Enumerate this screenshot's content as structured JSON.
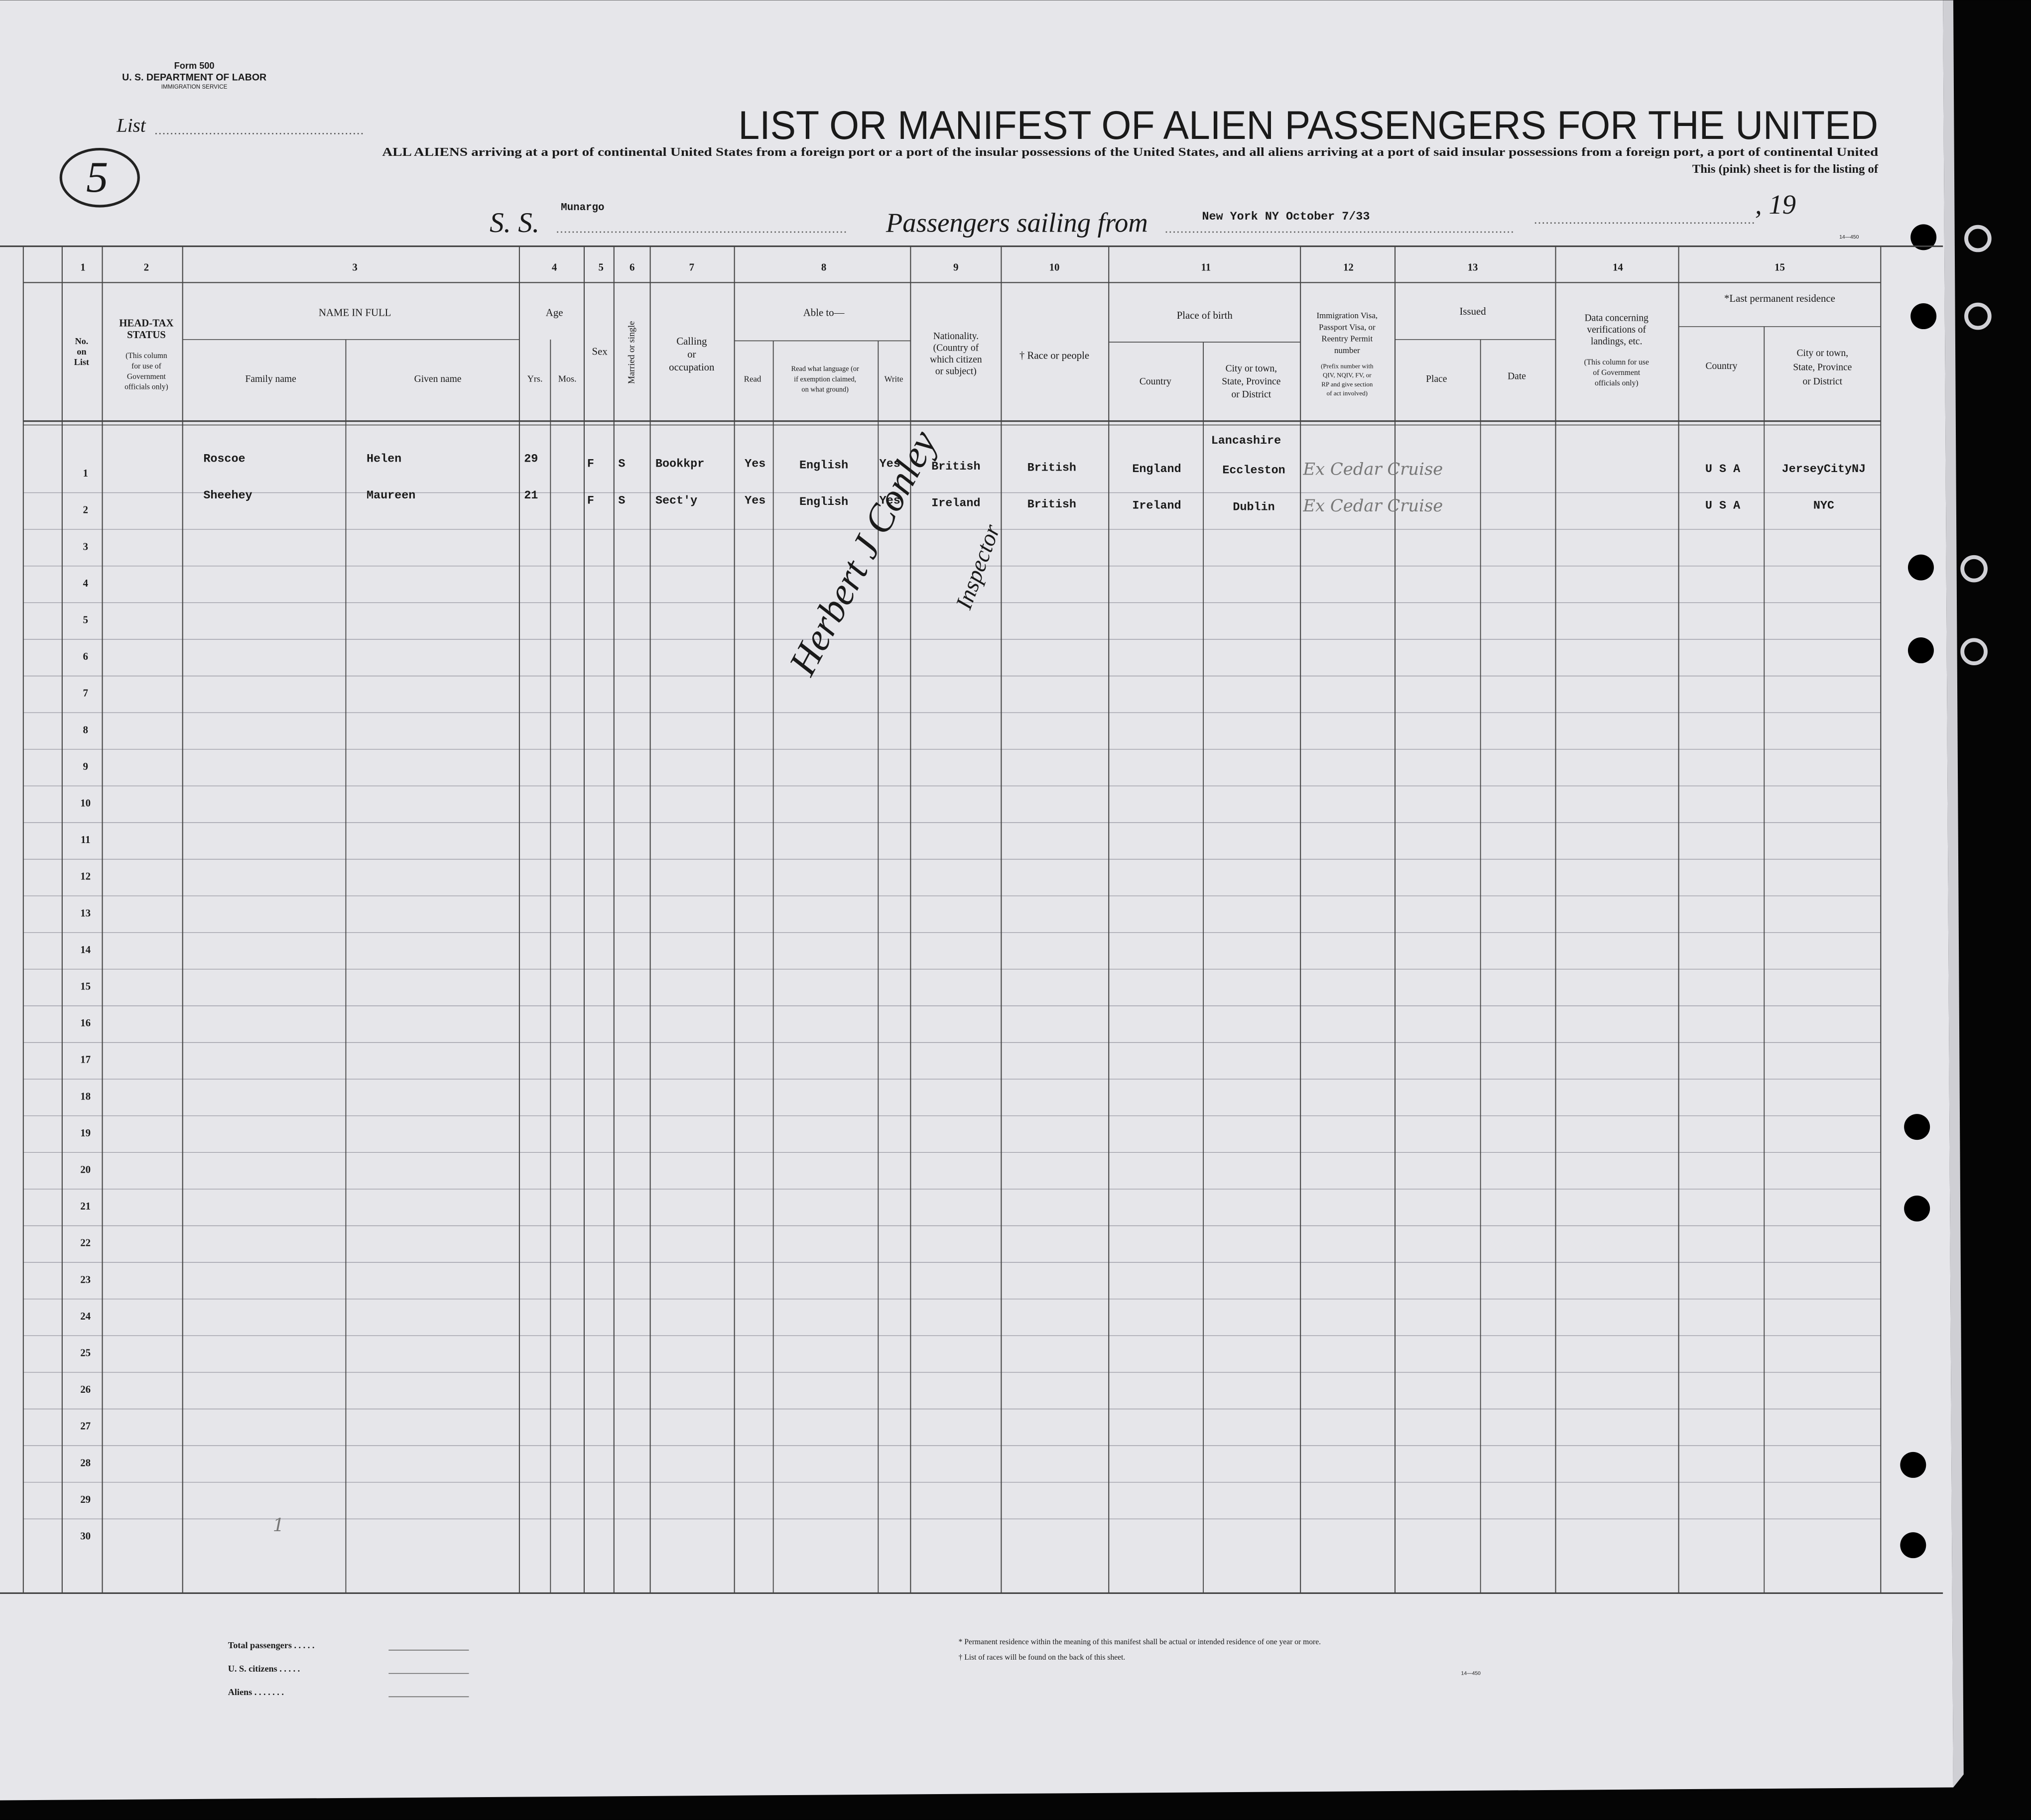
{
  "form": {
    "number": "Form 500",
    "department": "U. S. DEPARTMENT OF LABOR",
    "service": "IMMIGRATION SERVICE"
  },
  "list_label": "List",
  "list_number": "5",
  "title": "LIST OR MANIFEST OF ALIEN PASSENGERS FOR THE UNITED",
  "subtitle_lines": [
    "ALL ALIENS arriving at a port of continental United States from a foreign port or a port of the insular possessions of the United States, and all aliens arriving at a port of said insular possessions from a foreign port, a port of continental United",
    "This (pink) sheet is for the listing of"
  ],
  "ship_label": "S. S.",
  "ship_name": "Munargo",
  "sailing_label": "Passengers sailing from",
  "sailing_from": "New York NY October 7/33",
  "year_label": ", 19",
  "form_codes": [
    "14—450",
    "14—450"
  ],
  "column_numbers": [
    "1",
    "2",
    "3",
    "4",
    "5",
    "6",
    "7",
    "8",
    "9",
    "10",
    "11",
    "12",
    "13",
    "14",
    "15"
  ],
  "headers": [
    {
      "lines": [
        "No.",
        "on",
        "List"
      ]
    },
    {
      "lines": [
        "HEAD-TAX",
        "STATUS"
      ]
    },
    {
      "lines": [
        "(This column",
        "for use of",
        "Government",
        "officials only)"
      ]
    },
    {
      "lines": [
        "NAME IN FULL"
      ]
    },
    {
      "lines": [
        "Family name"
      ]
    },
    {
      "lines": [
        "Given name"
      ]
    },
    {
      "lines": [
        "Age"
      ]
    },
    {
      "lines": [
        "Yrs."
      ]
    },
    {
      "lines": [
        "Mos."
      ]
    },
    {
      "lines": [
        "Sex"
      ]
    },
    {
      "lines": [
        "Married or single"
      ]
    },
    {
      "lines": [
        "Calling",
        "or",
        "occupation"
      ]
    },
    {
      "lines": [
        "Able to—"
      ]
    },
    {
      "lines": [
        "Read"
      ]
    },
    {
      "lines": [
        "Read what language (or",
        "if exemption claimed,",
        "on what ground)"
      ]
    },
    {
      "lines": [
        "Write"
      ]
    },
    {
      "lines": [
        "Nationality.",
        "(Country of",
        "which citizen",
        "or subject)"
      ]
    },
    {
      "lines": [
        "† Race or people"
      ]
    },
    {
      "lines": [
        "Place of birth"
      ]
    },
    {
      "lines": [
        "Country"
      ]
    },
    {
      "lines": [
        "City or town,",
        "State, Province",
        "or District"
      ]
    },
    {
      "lines": [
        "Immigration Visa,",
        "Passport Visa, or",
        "Reentry Permit",
        "number"
      ]
    },
    {
      "lines": [
        "(Prefix number with",
        "QIV, NQIV, FV, or",
        "RP and give section",
        "of act involved)"
      ]
    },
    {
      "lines": [
        "Issued"
      ]
    },
    {
      "lines": [
        "Place"
      ]
    },
    {
      "lines": [
        "Date"
      ]
    },
    {
      "lines": [
        "Data concerning",
        "verifications of",
        "landings, etc."
      ]
    },
    {
      "lines": [
        "(This column for use",
        "of Government",
        "officials only)"
      ]
    },
    {
      "lines": [
        "*Last permanent residence"
      ]
    },
    {
      "lines": [
        "Country"
      ]
    },
    {
      "lines": [
        "City or town,",
        "State, Province",
        "or District"
      ]
    }
  ],
  "rows": [
    {
      "number": 1,
      "family_name": "Roscoe",
      "given_name": "Helen",
      "age_years": 29,
      "sex": "F",
      "marital": "S",
      "occupation": "Bookkpr",
      "read": "Yes",
      "language": "English",
      "write": "Yes",
      "nationality": "British",
      "race": "British",
      "birth_country": "England",
      "birth_region": "Lancashire",
      "birth_city": "Eccleston",
      "visa": "Ex Cedar Cruise",
      "residence_country": "U S A",
      "residence_city": "JerseyCityNJ"
    },
    {
      "number": 2,
      "family_name": "Sheehey",
      "given_name": "Maureen",
      "age_years": 21,
      "sex": "F",
      "marital": "S",
      "occupation": "Sect'y",
      "read": "Yes",
      "language": "English",
      "write": "Yes",
      "nationality": "Ireland",
      "race": "British",
      "birth_country": "Ireland",
      "birth_city": "Dublin",
      "visa": "Ex Cedar Cruise",
      "residence_country": "U S A",
      "residence_city": "NYC"
    },
    {
      "number": 3
    },
    {
      "number": 4
    },
    {
      "number": 5
    },
    {
      "number": 6
    },
    {
      "number": 7
    },
    {
      "number": 8
    },
    {
      "number": 9
    },
    {
      "number": 10
    },
    {
      "number": 11
    },
    {
      "number": 12
    },
    {
      "number": 13
    },
    {
      "number": 14
    },
    {
      "number": 15
    },
    {
      "number": 16
    },
    {
      "number": 17
    },
    {
      "number": 18
    },
    {
      "number": 19
    },
    {
      "number": 20
    },
    {
      "number": 21
    },
    {
      "number": 22
    },
    {
      "number": 23
    },
    {
      "number": 24
    },
    {
      "number": 25
    },
    {
      "number": 26
    },
    {
      "number": 27
    },
    {
      "number": 28
    },
    {
      "number": 29
    },
    {
      "number": 30,
      "mark": "1"
    }
  ],
  "signature": {
    "name": "Herbert J Conley",
    "title": "Inspector"
  },
  "totals": [
    "Total passengers . . . . .",
    "U. S. citizens . . . . .",
    "Aliens . . . . . . ."
  ],
  "notes": [
    "* Permanent residence within the meaning of this manifest shall be actual or intended residence of one year or more.",
    "† List of races will be found on the back of this sheet."
  ]
}
